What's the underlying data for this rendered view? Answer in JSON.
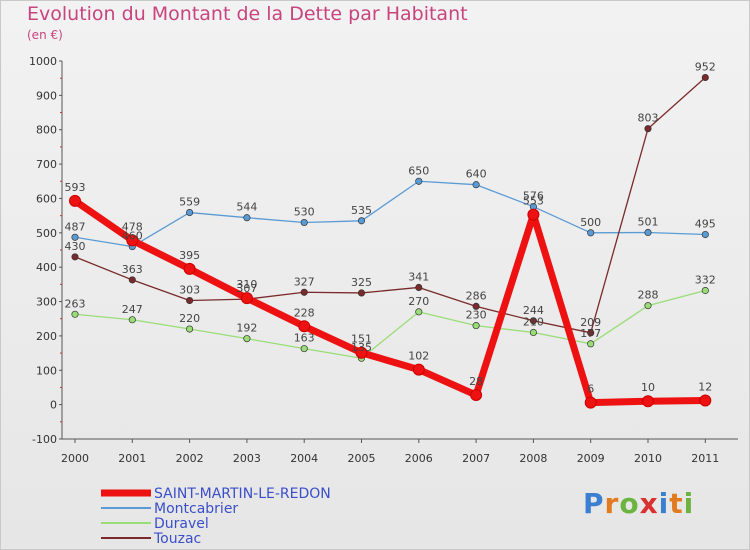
{
  "chart_data": {
    "type": "line",
    "title": "Evolution du Montant de la Dette par Habitant",
    "subtitle": "(en €)",
    "x": [
      "2000",
      "2001",
      "2002",
      "2003",
      "2004",
      "2005",
      "2006",
      "2007",
      "2008",
      "2009",
      "2010",
      "2011"
    ],
    "ylim": [
      -100,
      1000
    ],
    "yticks": [
      -100,
      0,
      100,
      200,
      300,
      400,
      500,
      600,
      700,
      800,
      900,
      1000
    ],
    "grid": false,
    "legend_position": "bottom-left",
    "series": [
      {
        "name": "Montcabrier",
        "color": "#5b9bd5",
        "width": 1.3,
        "values": [
          487,
          460,
          559,
          544,
          530,
          535,
          650,
          640,
          576,
          500,
          501,
          495
        ],
        "labels": [
          "487",
          "460",
          "559",
          "544",
          "530",
          "535",
          "650",
          "640",
          "576",
          "500",
          "501",
          "495"
        ]
      },
      {
        "name": "Duravel",
        "color": "#99dd77",
        "width": 1.3,
        "values": [
          263,
          247,
          220,
          192,
          163,
          135,
          270,
          230,
          210,
          177,
          288,
          332
        ],
        "labels": [
          "263",
          "247",
          "220",
          "192",
          "163",
          "135",
          "270",
          "230",
          "210",
          "177",
          "288",
          "332"
        ]
      },
      {
        "name": "Touzac",
        "color": "#7a2a2a",
        "width": 1.3,
        "values": [
          430,
          363,
          303,
          307,
          327,
          325,
          341,
          286,
          244,
          209,
          803,
          952
        ],
        "labels": [
          "430",
          "363",
          "303",
          "307",
          "327",
          "325",
          "341",
          "286",
          "244",
          "209",
          "803",
          "952"
        ]
      },
      {
        "name": "SAINT-MARTIN-LE-REDON",
        "color": "#ee1111",
        "width": 7,
        "values": [
          593,
          478,
          395,
          310,
          228,
          151,
          102,
          28,
          553,
          6,
          10,
          12
        ],
        "labels": [
          "593",
          "478",
          "395",
          "310",
          "228",
          "151",
          "102",
          "28",
          "553",
          "6",
          "10",
          "12"
        ]
      }
    ],
    "legend": [
      {
        "name": "SAINT-MARTIN-LE-REDON",
        "color": "#ee1111",
        "thick": true
      },
      {
        "name": "Montcabrier",
        "color": "#5b9bd5",
        "thick": false
      },
      {
        "name": "Duravel",
        "color": "#99dd77",
        "thick": false
      },
      {
        "name": "Touzac",
        "color": "#7a2a2a",
        "thick": false
      }
    ]
  },
  "branding": {
    "logo_letters": [
      {
        "ch": "P",
        "color": "#3a7fd0"
      },
      {
        "ch": "r",
        "color": "#e27a1f"
      },
      {
        "ch": "o",
        "color": "#6cb33f"
      },
      {
        "ch": "x",
        "color": "#d93030"
      },
      {
        "ch": "i",
        "color": "#3a7fd0"
      },
      {
        "ch": "t",
        "color": "#e27a1f"
      },
      {
        "ch": "i",
        "color": "#6cb33f"
      }
    ]
  }
}
